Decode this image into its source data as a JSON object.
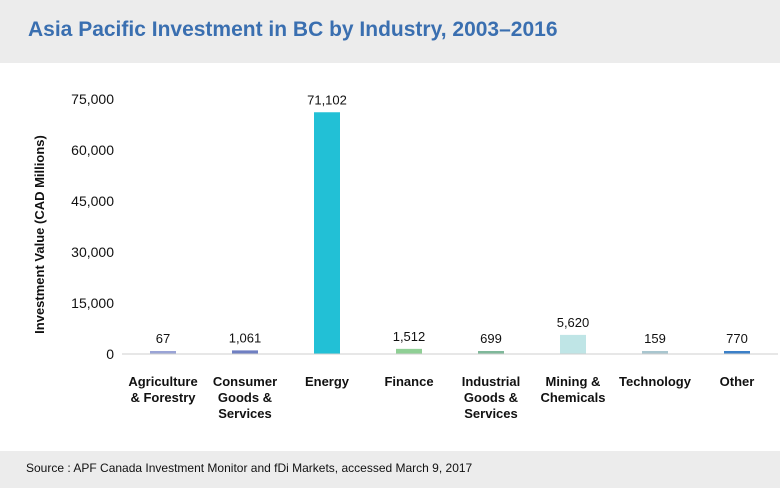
{
  "title": "Asia Pacific Investment in BC by Industry, 2003–2016",
  "source": "Source : APF Canada Investment Monitor and fDi Markets, accessed March 9, 2017",
  "chart_data": {
    "type": "bar",
    "title": "Asia Pacific Investment in BC by Industry, 2003–2016",
    "xlabel": "",
    "ylabel": "Investment Value (CAD Millions)",
    "ylim": [
      0,
      75000
    ],
    "yticks": [
      0,
      15000,
      30000,
      45000,
      60000,
      75000
    ],
    "ytick_labels": [
      "0",
      "15,000",
      "30,000",
      "45,000",
      "60,000",
      "75,000"
    ],
    "grid": false,
    "legend": "none",
    "categories": [
      [
        "Agriculture",
        "& Forestry"
      ],
      [
        "Consumer",
        "Goods &",
        "Services"
      ],
      [
        "Energy"
      ],
      [
        "Finance"
      ],
      [
        "Industrial",
        "Goods &",
        "Services"
      ],
      [
        "Mining &",
        "Chemicals"
      ],
      [
        "Technology"
      ],
      [
        "Other"
      ]
    ],
    "values": [
      67,
      1061,
      71102,
      1512,
      699,
      5620,
      159,
      770
    ],
    "value_labels": [
      "67",
      "1,061",
      "71,102",
      "1,512",
      "699",
      "5,620",
      "159",
      "770"
    ],
    "colors": [
      "#9aa4d6",
      "#6f7fc2",
      "#22c0d6",
      "#8fcf95",
      "#7fb89a",
      "#bfe5e6",
      "#a9c6cf",
      "#3b80c8"
    ]
  }
}
